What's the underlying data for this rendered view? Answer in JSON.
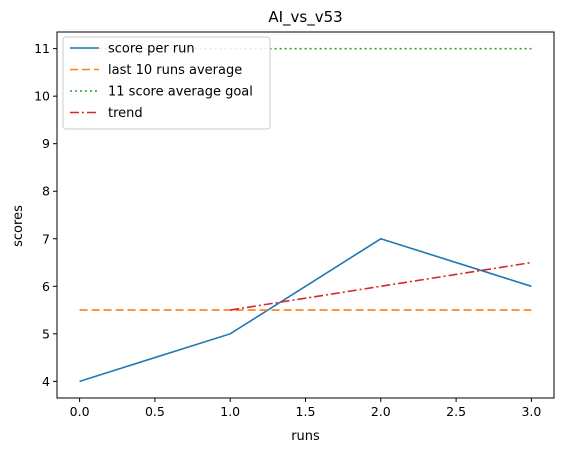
{
  "chart_data": {
    "type": "line",
    "title": "AI_vs_v53",
    "xlabel": "runs",
    "ylabel": "scores",
    "xlim": [
      -0.15,
      3.15
    ],
    "ylim": [
      3.65,
      11.35
    ],
    "xticks": [
      0.0,
      0.5,
      1.0,
      1.5,
      2.0,
      2.5,
      3.0
    ],
    "xtick_labels": [
      "0.0",
      "0.5",
      "1.0",
      "1.5",
      "2.0",
      "2.5",
      "3.0"
    ],
    "yticks": [
      4,
      5,
      6,
      7,
      8,
      9,
      10,
      11
    ],
    "ytick_labels": [
      "4",
      "5",
      "6",
      "7",
      "8",
      "9",
      "10",
      "11"
    ],
    "grid": false,
    "legend_position": "top-left",
    "series": [
      {
        "name": "score per run",
        "color": "#1f77b4",
        "style": "solid",
        "x": [
          0,
          1,
          2,
          3
        ],
        "y": [
          4,
          5,
          7,
          6
        ]
      },
      {
        "name": "last 10 runs average",
        "color": "#ff7f0e",
        "style": "dashed",
        "x": [
          0,
          1,
          2,
          3
        ],
        "y": [
          5.5,
          5.5,
          5.5,
          5.5
        ]
      },
      {
        "name": "11 score average goal",
        "color": "#2ca02c",
        "style": "dotted",
        "x": [
          0,
          1,
          2,
          3
        ],
        "y": [
          11,
          11,
          11,
          11
        ]
      },
      {
        "name": "trend",
        "color": "#d62728",
        "style": "dashdot",
        "x": [
          1,
          2,
          3
        ],
        "y": [
          5.5,
          6.0,
          6.5
        ]
      }
    ]
  }
}
